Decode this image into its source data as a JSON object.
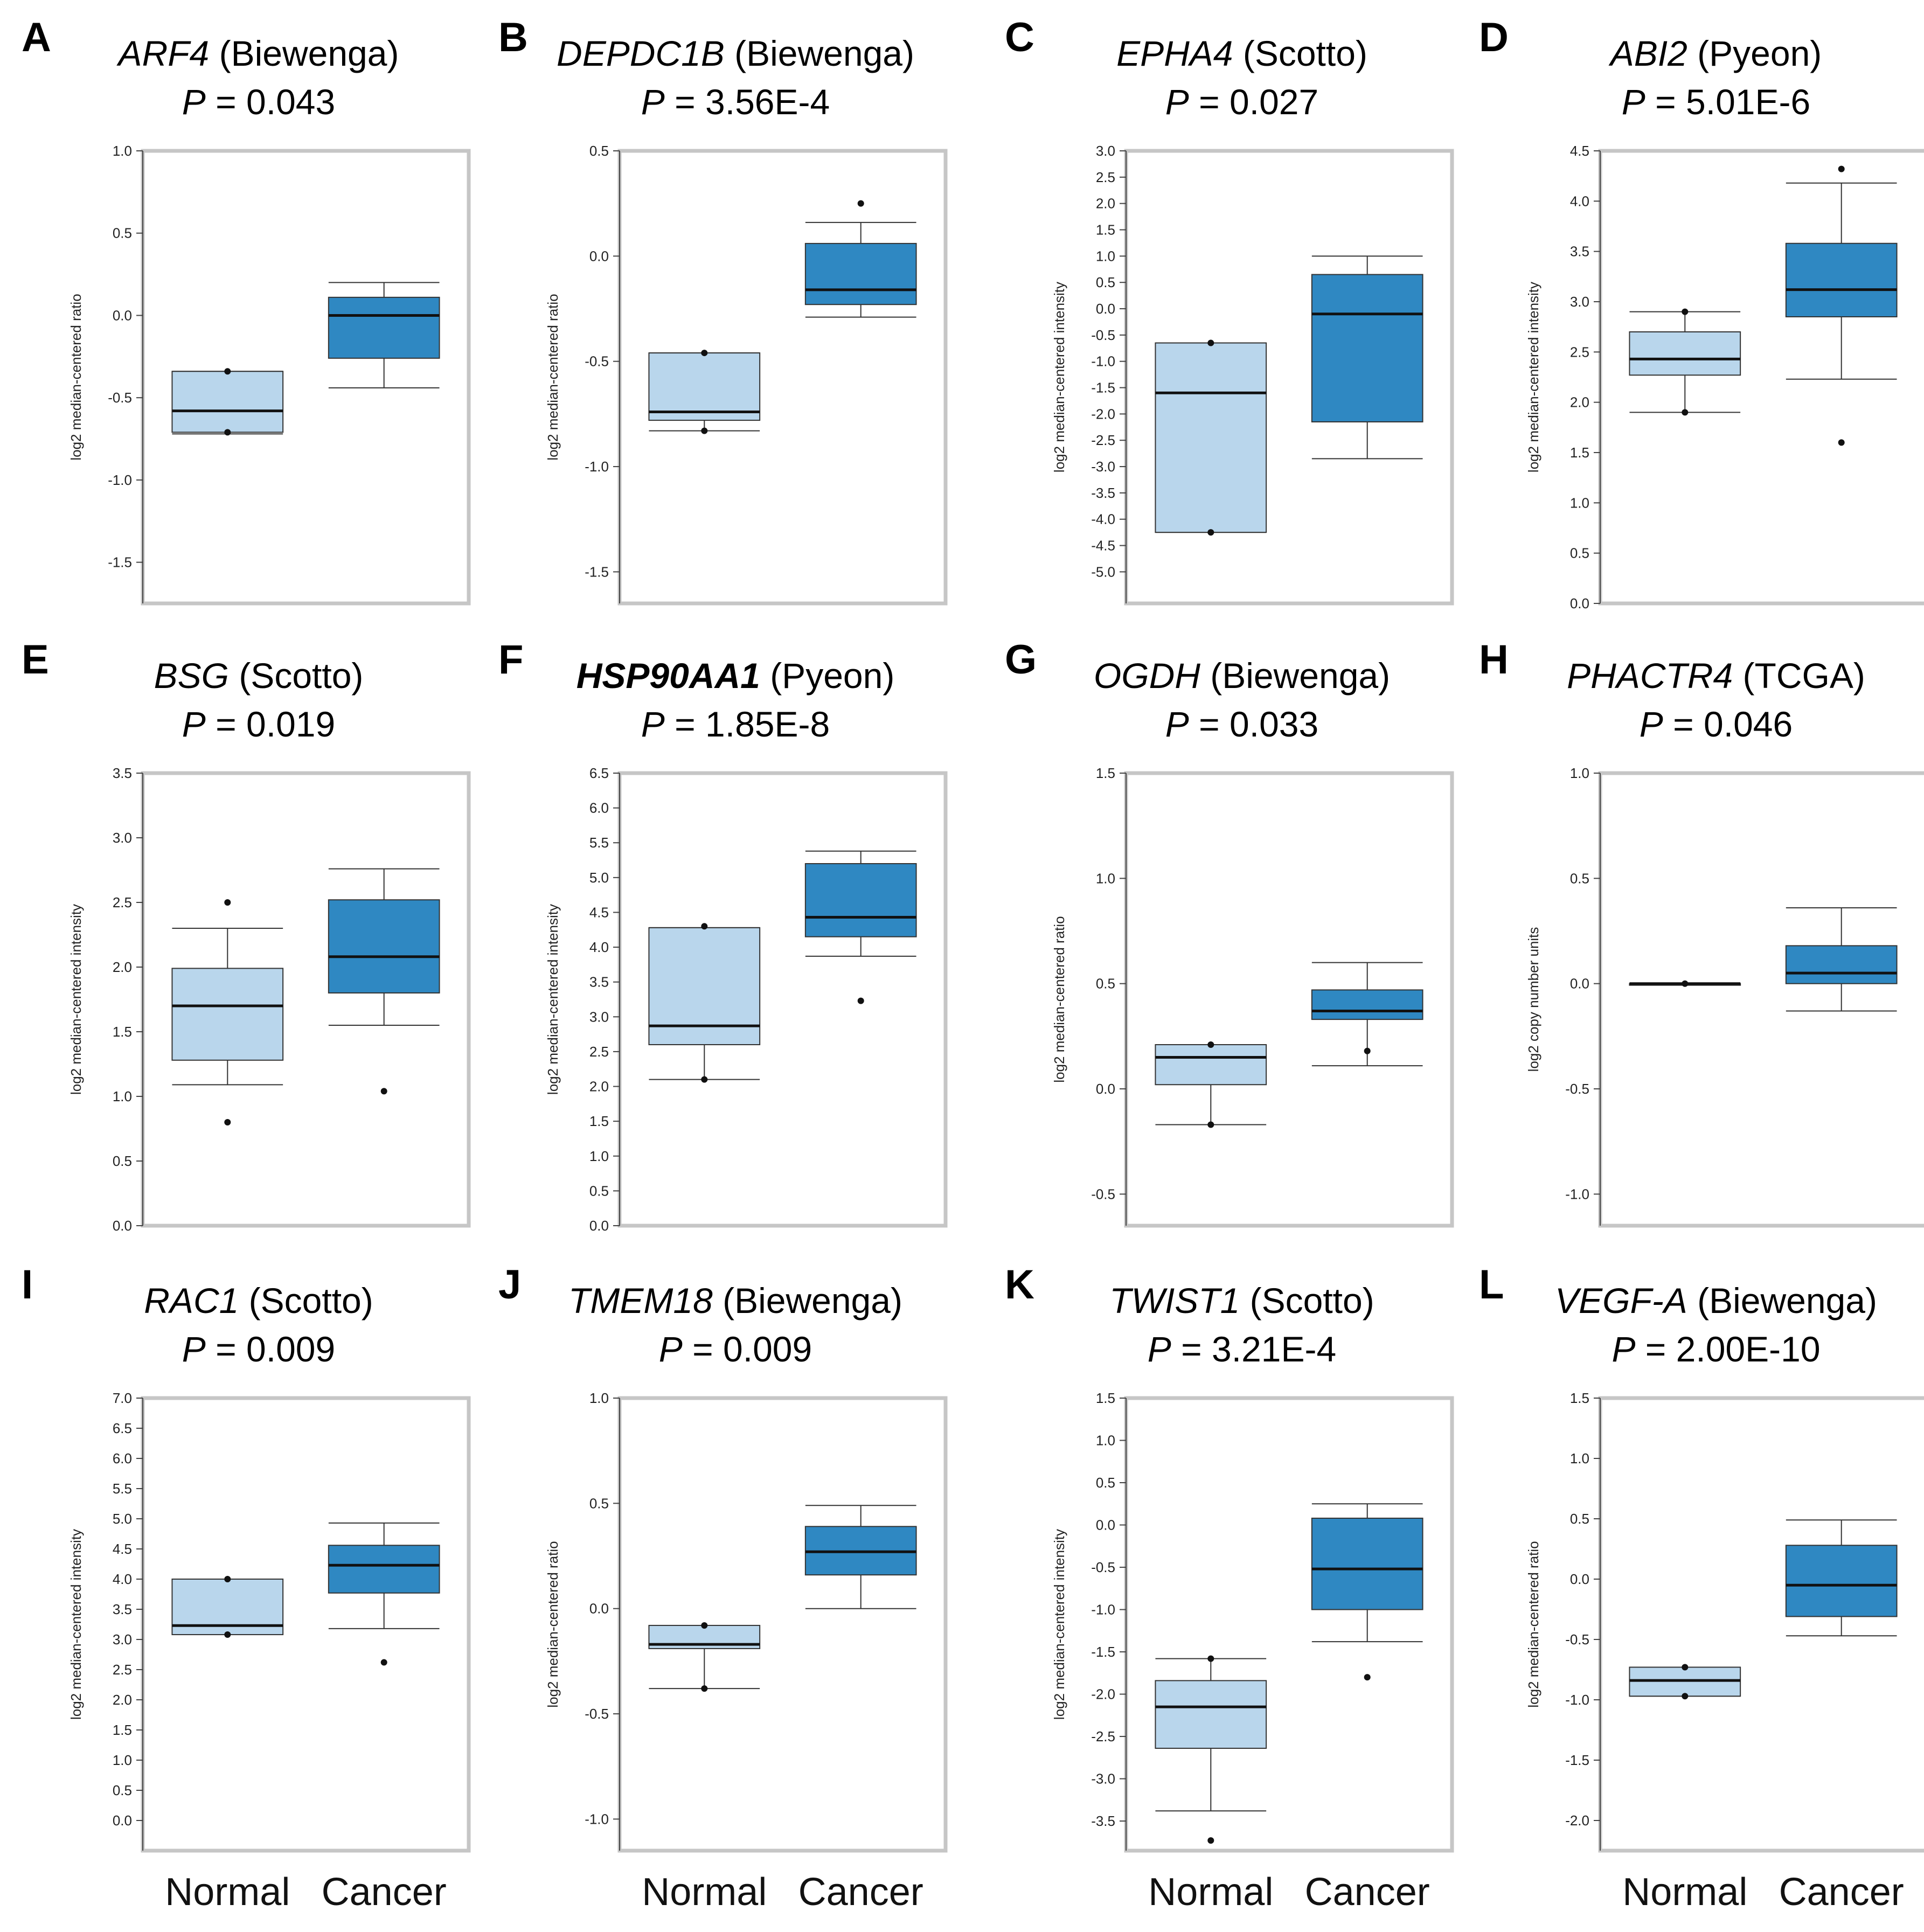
{
  "figure": {
    "categories": [
      "Normal",
      "Cancer"
    ],
    "colors": {
      "normal": "#b9d6ec",
      "cancer": "#2f88c2",
      "frame": "#c6c6c6"
    }
  },
  "chart_data": [
    {
      "panel": "A",
      "gene": "ARF4",
      "bold": false,
      "dataset": "(Biewenga)",
      "p_value": "P = 0.043",
      "type": "box",
      "ylabel": "log2 median-centered ratio",
      "ylim": [
        -1.75,
        1.0
      ],
      "yticks": [
        1.0,
        0.5,
        0.0,
        -0.5,
        -1.0,
        -1.5
      ],
      "ytick_labels": [
        "1.0",
        "0.5",
        "0.0",
        "-0.5",
        "-1.0",
        "-1.5"
      ],
      "series": [
        {
          "name": "Normal",
          "whisker_low": -0.72,
          "q1": -0.71,
          "median": -0.58,
          "q3": -0.34,
          "whisker_high": -0.34,
          "outliers": [
            -0.34,
            -0.71
          ]
        },
        {
          "name": "Cancer",
          "whisker_low": -0.44,
          "q1": -0.26,
          "median": 0.0,
          "q3": 0.11,
          "whisker_high": 0.2,
          "outliers": []
        }
      ]
    },
    {
      "panel": "B",
      "gene": "DEPDC1B",
      "bold": false,
      "dataset": "(Biewenga)",
      "p_value": "P = 3.56E-4",
      "type": "box",
      "ylabel": "log2 median-centered ratio",
      "ylim": [
        -1.65,
        0.5
      ],
      "yticks": [
        0.5,
        0.0,
        -0.5,
        -1.0,
        -1.5
      ],
      "ytick_labels": [
        "0.5",
        "0.0",
        "-0.5",
        "-1.0",
        "-1.5"
      ],
      "series": [
        {
          "name": "Normal",
          "whisker_low": -0.83,
          "q1": -0.78,
          "median": -0.74,
          "q3": -0.46,
          "whisker_high": -0.46,
          "outliers": [
            -0.46,
            -0.83
          ]
        },
        {
          "name": "Cancer",
          "whisker_low": -0.29,
          "q1": -0.23,
          "median": -0.16,
          "q3": 0.06,
          "whisker_high": 0.16,
          "outliers": [
            0.25
          ]
        }
      ]
    },
    {
      "panel": "C",
      "gene": "EPHA4",
      "bold": false,
      "dataset": "(Scotto)",
      "p_value": "P = 0.027",
      "type": "box",
      "ylabel": "log2 median-centered intensity",
      "ylim": [
        -5.6,
        3.0
      ],
      "yticks": [
        3.0,
        2.5,
        2.0,
        1.5,
        1.0,
        0.5,
        0.0,
        -0.5,
        -1.0,
        -1.5,
        -2.0,
        -2.5,
        -3.0,
        -3.5,
        -4.0,
        -4.5,
        -5.0
      ],
      "ytick_labels": [
        "3.0",
        "2.5",
        "2.0",
        "1.5",
        "1.0",
        "0.5",
        "0.0",
        "-0.5",
        "-1.0",
        "-1.5",
        "-2.0",
        "-2.5",
        "-3.0",
        "-3.5",
        "-4.0",
        "-4.5",
        "-5.0"
      ],
      "series": [
        {
          "name": "Normal",
          "whisker_low": -4.25,
          "q1": -4.25,
          "median": -1.6,
          "q3": -0.65,
          "whisker_high": -0.65,
          "outliers": [
            -0.65,
            -4.25
          ]
        },
        {
          "name": "Cancer",
          "whisker_low": -2.85,
          "q1": -2.15,
          "median": -0.1,
          "q3": 0.65,
          "whisker_high": 1.0,
          "outliers": []
        }
      ]
    },
    {
      "panel": "D",
      "gene": "ABI2",
      "bold": false,
      "dataset": "(Pyeon)",
      "p_value": "P = 5.01E-6",
      "type": "box",
      "ylabel": "log2 median-centered intensity",
      "ylim": [
        0.0,
        4.5
      ],
      "yticks": [
        4.5,
        4.0,
        3.5,
        3.0,
        2.5,
        2.0,
        1.5,
        1.0,
        0.5,
        0.0
      ],
      "ytick_labels": [
        "4.5",
        "4.0",
        "3.5",
        "3.0",
        "2.5",
        "2.0",
        "1.5",
        "1.0",
        "0.5",
        "0.0"
      ],
      "series": [
        {
          "name": "Normal",
          "whisker_low": 1.9,
          "q1": 2.27,
          "median": 2.43,
          "q3": 2.7,
          "whisker_high": 2.9,
          "outliers": [
            2.9,
            1.9
          ]
        },
        {
          "name": "Cancer",
          "whisker_low": 2.23,
          "q1": 2.85,
          "median": 3.12,
          "q3": 3.58,
          "whisker_high": 4.18,
          "outliers": [
            4.32,
            1.6
          ]
        }
      ]
    },
    {
      "panel": "E",
      "gene": "BSG",
      "bold": false,
      "dataset": "(Scotto)",
      "p_value": "P = 0.019",
      "type": "box",
      "ylabel": "log2 median-centered intensity",
      "ylim": [
        0.0,
        3.5
      ],
      "yticks": [
        3.5,
        3.0,
        2.5,
        2.0,
        1.5,
        1.0,
        0.5,
        0.0
      ],
      "ytick_labels": [
        "3.5",
        "3.0",
        "2.5",
        "2.0",
        "1.5",
        "1.0",
        "0.5",
        "0.0"
      ],
      "series": [
        {
          "name": "Normal",
          "whisker_low": 1.09,
          "q1": 1.28,
          "median": 1.7,
          "q3": 1.99,
          "whisker_high": 2.3,
          "outliers": [
            2.5,
            0.8
          ]
        },
        {
          "name": "Cancer",
          "whisker_low": 1.55,
          "q1": 1.8,
          "median": 2.08,
          "q3": 2.52,
          "whisker_high": 2.76,
          "outliers": [
            1.04
          ]
        }
      ]
    },
    {
      "panel": "F",
      "gene": "HSP90AA1",
      "bold": true,
      "dataset": "(Pyeon)",
      "p_value": "P = 1.85E-8",
      "type": "box",
      "ylabel": "log2 median-centered intensity",
      "ylim": [
        0.0,
        6.5
      ],
      "yticks": [
        6.5,
        6.0,
        5.5,
        5.0,
        4.5,
        4.0,
        3.5,
        3.0,
        2.5,
        2.0,
        1.5,
        1.0,
        0.5,
        0.0
      ],
      "ytick_labels": [
        "6.5",
        "6.0",
        "5.5",
        "5.0",
        "4.5",
        "4.0",
        "3.5",
        "3.0",
        "2.5",
        "2.0",
        "1.5",
        "1.0",
        "0.5",
        "0.0"
      ],
      "series": [
        {
          "name": "Normal",
          "whisker_low": 2.1,
          "q1": 2.6,
          "median": 2.87,
          "q3": 4.28,
          "whisker_high": 4.28,
          "outliers": [
            4.3,
            2.1
          ]
        },
        {
          "name": "Cancer",
          "whisker_low": 3.87,
          "q1": 4.15,
          "median": 4.43,
          "q3": 5.2,
          "whisker_high": 5.38,
          "outliers": [
            3.23
          ]
        }
      ]
    },
    {
      "panel": "G",
      "gene": "OGDH",
      "bold": false,
      "dataset": "(Biewenga)",
      "p_value": "P = 0.033",
      "type": "box",
      "ylabel": "log2 median-centered ratio",
      "ylim": [
        -0.65,
        1.5
      ],
      "yticks": [
        1.5,
        1.0,
        0.5,
        0.0,
        -0.5
      ],
      "ytick_labels": [
        "1.5",
        "1.0",
        "0.5",
        "0.0",
        "-0.5"
      ],
      "series": [
        {
          "name": "Normal",
          "whisker_low": -0.17,
          "q1": 0.02,
          "median": 0.15,
          "q3": 0.21,
          "whisker_high": 0.21,
          "outliers": [
            0.21,
            -0.17
          ]
        },
        {
          "name": "Cancer",
          "whisker_low": 0.11,
          "q1": 0.33,
          "median": 0.37,
          "q3": 0.47,
          "whisker_high": 0.6,
          "outliers": [
            0.18
          ]
        }
      ]
    },
    {
      "panel": "H",
      "gene": "PHACTR4",
      "bold": false,
      "dataset": "(TCGA)",
      "p_value": "P = 0.046",
      "type": "box",
      "ylabel": "log2 copy number units",
      "ylim": [
        -1.15,
        1.0
      ],
      "yticks": [
        1.0,
        0.5,
        0.0,
        -0.5,
        -1.0
      ],
      "ytick_labels": [
        "1.0",
        "0.5",
        "0.0",
        "-0.5",
        "-1.0"
      ],
      "series": [
        {
          "name": "Normal",
          "whisker_low": 0.0,
          "q1": 0.0,
          "median": 0.0,
          "q3": 0.0,
          "whisker_high": 0.0,
          "outliers": [
            0.0
          ]
        },
        {
          "name": "Cancer",
          "whisker_low": -0.13,
          "q1": 0.0,
          "median": 0.05,
          "q3": 0.18,
          "whisker_high": 0.36,
          "outliers": []
        }
      ]
    },
    {
      "panel": "I",
      "gene": "RAC1",
      "bold": false,
      "dataset": "(Scotto)",
      "p_value": "P = 0.009",
      "type": "box",
      "ylabel": "log2 median-centered intensity",
      "ylim": [
        -0.5,
        7.0
      ],
      "yticks": [
        7.0,
        6.5,
        6.0,
        5.5,
        5.0,
        4.5,
        4.0,
        3.5,
        3.0,
        2.5,
        2.0,
        1.5,
        1.0,
        0.5,
        0.0
      ],
      "ytick_labels": [
        "7.0",
        "6.5",
        "6.0",
        "5.5",
        "5.0",
        "4.5",
        "4.0",
        "3.5",
        "3.0",
        "2.5",
        "2.0",
        "1.5",
        "1.0",
        "0.5",
        "0.0"
      ],
      "series": [
        {
          "name": "Normal",
          "whisker_low": 3.08,
          "q1": 3.08,
          "median": 3.23,
          "q3": 4.0,
          "whisker_high": 4.0,
          "outliers": [
            4.0,
            3.08
          ]
        },
        {
          "name": "Cancer",
          "whisker_low": 3.18,
          "q1": 3.77,
          "median": 4.23,
          "q3": 4.56,
          "whisker_high": 4.93,
          "outliers": [
            2.62
          ]
        }
      ]
    },
    {
      "panel": "J",
      "gene": "TMEM18",
      "bold": false,
      "dataset": "(Biewenga)",
      "p_value": "P = 0.009",
      "type": "box",
      "ylabel": "log2 median-centered ratio",
      "ylim": [
        -1.15,
        1.0
      ],
      "yticks": [
        1.0,
        0.5,
        0.0,
        -0.5,
        -1.0
      ],
      "ytick_labels": [
        "1.0",
        "0.5",
        "0.0",
        "-0.5",
        "-1.0"
      ],
      "series": [
        {
          "name": "Normal",
          "whisker_low": -0.38,
          "q1": -0.19,
          "median": -0.17,
          "q3": -0.08,
          "whisker_high": -0.08,
          "outliers": [
            -0.08,
            -0.38
          ]
        },
        {
          "name": "Cancer",
          "whisker_low": 0.0,
          "q1": 0.16,
          "median": 0.27,
          "q3": 0.39,
          "whisker_high": 0.49,
          "outliers": []
        }
      ]
    },
    {
      "panel": "K",
      "gene": "TWIST1",
      "bold": false,
      "dataset": "(Scotto)",
      "p_value": "P = 3.21E-4",
      "type": "box",
      "ylabel": "log2 median-centered intensity",
      "ylim": [
        -3.85,
        1.5
      ],
      "yticks": [
        1.5,
        1.0,
        0.5,
        0.0,
        -0.5,
        -1.0,
        -1.5,
        -2.0,
        -2.5,
        -3.0,
        -3.5
      ],
      "ytick_labels": [
        "1.5",
        "1.0",
        "0.5",
        "0.0",
        "-0.5",
        "-1.0",
        "-1.5",
        "-2.0",
        "-2.5",
        "-3.0",
        "-3.5"
      ],
      "series": [
        {
          "name": "Normal",
          "whisker_low": -3.38,
          "q1": -2.64,
          "median": -2.15,
          "q3": -1.84,
          "whisker_high": -1.58,
          "outliers": [
            -1.58,
            -3.73
          ]
        },
        {
          "name": "Cancer",
          "whisker_low": -1.38,
          "q1": -1.0,
          "median": -0.52,
          "q3": 0.08,
          "whisker_high": 0.25,
          "outliers": [
            -1.8
          ]
        }
      ]
    },
    {
      "panel": "L",
      "gene": "VEGF-A",
      "bold": false,
      "dataset": "(Biewenga)",
      "p_value": "P = 2.00E-10",
      "type": "box",
      "ylabel": "log2 median-centered ratio",
      "ylim": [
        -2.25,
        1.5
      ],
      "yticks": [
        1.5,
        1.0,
        0.5,
        0.0,
        -0.5,
        -1.0,
        -1.5,
        -2.0
      ],
      "ytick_labels": [
        "1.5",
        "1.0",
        "0.5",
        "0.0",
        "-0.5",
        "-1.0",
        "-1.5",
        "-2.0"
      ],
      "series": [
        {
          "name": "Normal",
          "whisker_low": -0.97,
          "q1": -0.97,
          "median": -0.84,
          "q3": -0.73,
          "whisker_high": -0.73,
          "outliers": [
            -0.73,
            -0.97
          ]
        },
        {
          "name": "Cancer",
          "whisker_low": -0.47,
          "q1": -0.31,
          "median": -0.05,
          "q3": 0.28,
          "whisker_high": 0.49,
          "outliers": []
        }
      ]
    }
  ]
}
